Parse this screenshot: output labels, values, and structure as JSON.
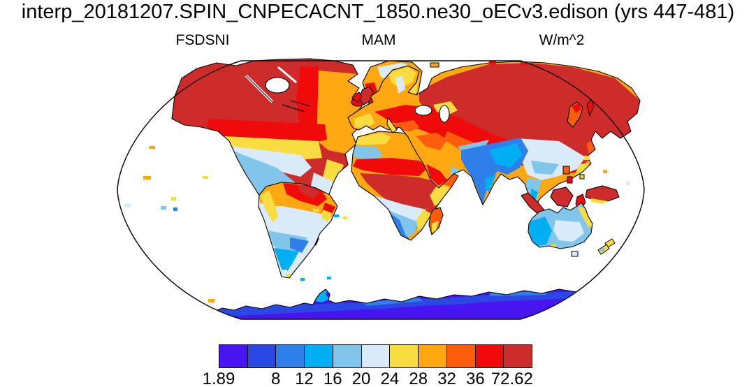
{
  "header": {
    "title": "interp_20181207.SPIN_CNPECACNT_1850.ne30_oECv3.edison (yrs 447-481)"
  },
  "labels": {
    "variable": "FSDSNI",
    "season": "MAM",
    "units": "W/m^2"
  },
  "chart_data": {
    "type": "heatmap",
    "subtype": "filled-contour global map, ocean masked white",
    "projection": "robinson",
    "variable": "FSDSNI",
    "season": "MAM",
    "units": "W/m^2",
    "title": "interp_20181207.SPIN_CNPECACNT_1850.ne30_oECv3.edison (yrs 447-481)",
    "data_min": 1.89,
    "data_max": 72.62,
    "contour_levels": [
      4,
      8,
      12,
      16,
      20,
      24,
      28,
      32,
      36,
      40
    ],
    "colorbar": {
      "colors": [
        "#4814F0",
        "#2C48E4",
        "#2F7FEB",
        "#00AEF4",
        "#82C5EA",
        "#D9EBF9",
        "#F9DC3F",
        "#FFA812",
        "#FC5D0D",
        "#F00A0A",
        "#CE2B2B"
      ],
      "tick_labels": [
        "1.89",
        "8",
        "12",
        "16",
        "20",
        "24",
        "28",
        "32",
        "36",
        "72.62"
      ],
      "tick_positions": [
        0,
        0.1818,
        0.2727,
        0.3636,
        0.4545,
        0.5455,
        0.6364,
        0.7273,
        0.8182,
        0.935
      ]
    },
    "ocean_mask_color": "#FFFFFF",
    "coastline_color": "#000000",
    "region_values": [
      {
        "region": "Canada / Alaska (boreal North America)",
        "approx_range_w_m2": "36-72.62"
      },
      {
        "region": "Northeastern Canada / Quebec",
        "approx_range_w_m2": "28-36"
      },
      {
        "region": "Central United States",
        "approx_range_w_m2": "24-28"
      },
      {
        "region": "Southwestern US and Mexico",
        "approx_range_w_m2": "16-24"
      },
      {
        "region": "Greenland",
        "approx_range_w_m2": "20-32"
      },
      {
        "region": "Northern South America",
        "approx_range_w_m2": "28-40"
      },
      {
        "region": "Central South America (Amazon)",
        "approx_range_w_m2": "20-24"
      },
      {
        "region": "Southern South America",
        "approx_range_w_m2": "8-20"
      },
      {
        "region": "Europe",
        "approx_range_w_m2": "28-36"
      },
      {
        "region": "Siberia / northern Asia",
        "approx_range_w_m2": "36-72.62"
      },
      {
        "region": "Sahara / Middle East",
        "approx_range_w_m2": "28-36"
      },
      {
        "region": "Sahel / central Africa",
        "approx_range_w_m2": "36-72.62"
      },
      {
        "region": "Southern Africa",
        "approx_range_w_m2": "12-24"
      },
      {
        "region": "India and Tibetan Plateau",
        "approx_range_w_m2": "8-20"
      },
      {
        "region": "Southern China / Southeast Asia",
        "approx_range_w_m2": "12-24"
      },
      {
        "region": "Maritime Continent (Sumatra, Borneo, New Guinea)",
        "approx_range_w_m2": "36-72.62"
      },
      {
        "region": "Australia",
        "approx_range_w_m2": "12-20"
      },
      {
        "region": "New Zealand",
        "approx_range_w_m2": "20-28"
      },
      {
        "region": "Antarctica",
        "approx_range_w_m2": "1.89-8"
      },
      {
        "region": "Oceans",
        "approx_range_w_m2": "masked (white)"
      }
    ]
  }
}
